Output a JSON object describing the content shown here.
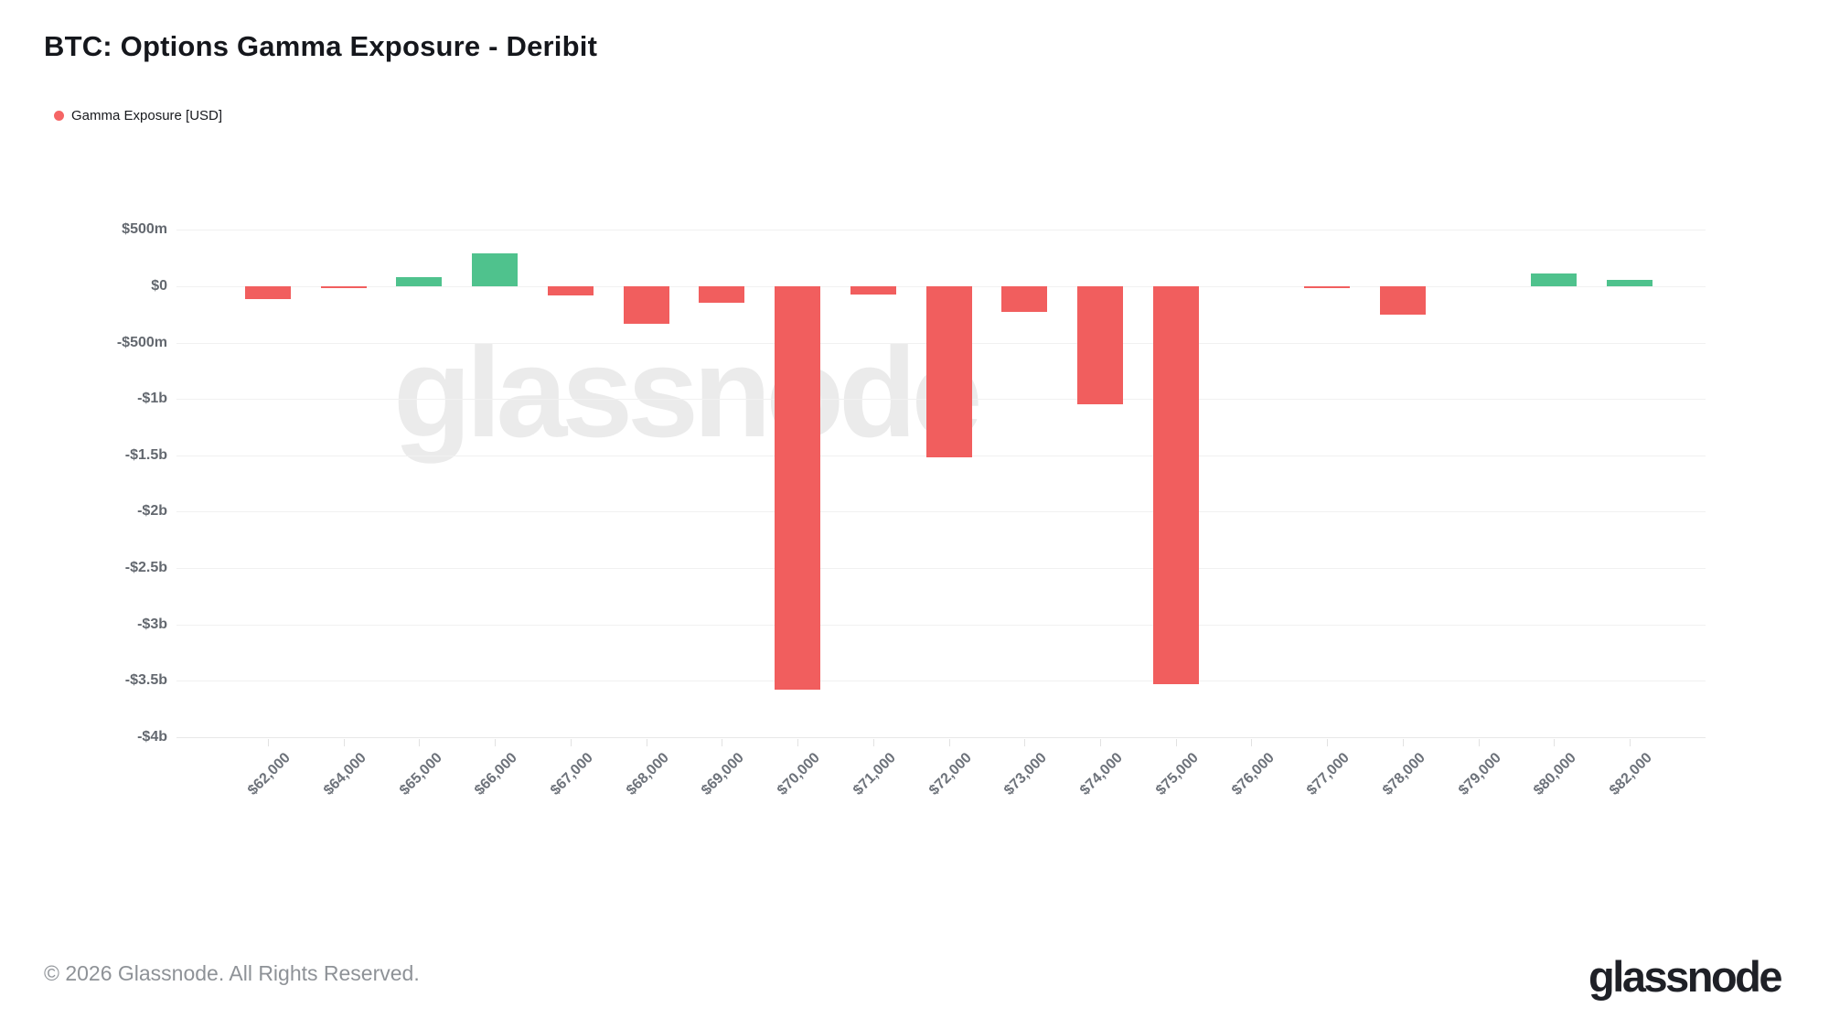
{
  "header": {
    "title": "BTC: Options Gamma Exposure - Deribit"
  },
  "legend": {
    "items": [
      {
        "label": "Gamma Exposure [USD]",
        "color": "#f56565"
      }
    ]
  },
  "watermark": {
    "text": "glassnode"
  },
  "footer": {
    "copyright": "© 2026 Glassnode. All Rights Reserved.",
    "brand": "glassnode"
  },
  "colors": {
    "negative": "#f15e5e",
    "positive": "#4fc28d",
    "grid": "#f1f1f1",
    "axis_label": "#63686f"
  },
  "chart_data": {
    "type": "bar",
    "title": "BTC: Options Gamma Exposure - Deribit",
    "series_name": "Gamma Exposure [USD]",
    "unit": "USD millions",
    "categories": [
      "$62,000",
      "$64,000",
      "$65,000",
      "$66,000",
      "$67,000",
      "$68,000",
      "$69,000",
      "$70,000",
      "$71,000",
      "$72,000",
      "$73,000",
      "$74,000",
      "$75,000",
      "$76,000",
      "$77,000",
      "$78,000",
      "$79,000",
      "$80,000",
      "$82,000"
    ],
    "values": [
      -110,
      -20,
      80,
      290,
      -80,
      -330,
      -150,
      -3580,
      -70,
      -1520,
      -230,
      -1050,
      -3530,
      0,
      -15,
      -250,
      0,
      110,
      55
    ],
    "y_ticks": [
      {
        "value": 500,
        "label": "$500m"
      },
      {
        "value": 0,
        "label": "$0"
      },
      {
        "value": -500,
        "label": "-$500m"
      },
      {
        "value": -1000,
        "label": "-$1b"
      },
      {
        "value": -1500,
        "label": "-$1.5b"
      },
      {
        "value": -2000,
        "label": "-$2b"
      },
      {
        "value": -2500,
        "label": "-$2.5b"
      },
      {
        "value": -3000,
        "label": "-$3b"
      },
      {
        "value": -3500,
        "label": "-$3.5b"
      },
      {
        "value": -4000,
        "label": "-$4b"
      }
    ],
    "ylim": [
      -4050,
      715
    ],
    "grid": true,
    "legend_position": "top-left",
    "bar_color_rule": "negative=red, positive=green"
  }
}
